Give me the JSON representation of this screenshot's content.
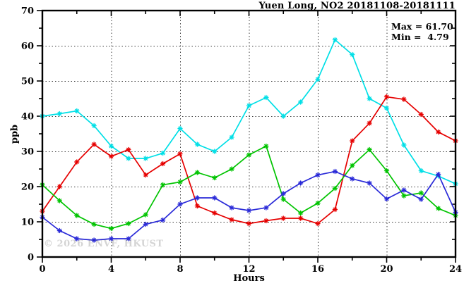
{
  "header": {
    "title": "Yuen Long, NO2 20181108-20181111"
  },
  "stats_box": {
    "max_label": "Max = 61.70",
    "min_label": "Min =  4.79"
  },
  "watermark": {
    "text": "© 2026 ENVF, HKUST"
  },
  "chart_data": {
    "type": "line",
    "title": "Yuen Long, NO2 20181108-20181111",
    "xlabel": "Hours",
    "ylabel": "ppb",
    "xlim": [
      0,
      24
    ],
    "ylim": [
      0,
      70
    ],
    "xticks_major": [
      0,
      4,
      8,
      12,
      16,
      20,
      24
    ],
    "xticks_minor": [
      2,
      6,
      10,
      14,
      18,
      22
    ],
    "yticks_major": [
      0,
      10,
      20,
      30,
      40,
      50,
      60,
      70
    ],
    "yticks_minor": [
      5,
      15,
      25,
      35,
      45,
      55,
      65
    ],
    "grid": {
      "vertical_at": [
        4,
        8,
        12,
        16,
        20
      ],
      "horizontal_at": [
        10,
        20,
        30,
        40,
        50,
        60
      ],
      "style": "dotted"
    },
    "legend": "none",
    "marker": "asterisk",
    "frame_color": "#000000",
    "x": [
      0,
      1,
      2,
      3,
      4,
      5,
      6,
      7,
      8,
      9,
      10,
      11,
      12,
      13,
      14,
      15,
      16,
      17,
      18,
      19,
      20,
      21,
      22,
      23,
      24
    ],
    "series": [
      {
        "name": "cyan-series",
        "color": "#00dfe6",
        "values": [
          40,
          40.7,
          41.5,
          37.3,
          31.5,
          28,
          28,
          29.5,
          36.5,
          32,
          30,
          34,
          43,
          45.3,
          40,
          44,
          50.5,
          61.7,
          57.5,
          45,
          42.3,
          31.8,
          24.5,
          23,
          20.8
        ]
      },
      {
        "name": "red-series",
        "color": "#e60000",
        "values": [
          13,
          20,
          27,
          32,
          28.6,
          30.5,
          23.3,
          26.5,
          29.3,
          14.5,
          12.5,
          10.6,
          9.5,
          10.3,
          11,
          11,
          9.5,
          13.5,
          33,
          38,
          45.5,
          44.8,
          40.5,
          35.5,
          33
        ]
      },
      {
        "name": "green-series",
        "color": "#00c400",
        "values": [
          20.5,
          16,
          11.8,
          9.3,
          8.1,
          9.5,
          12,
          20.5,
          21.3,
          24,
          22.5,
          25,
          29,
          31.5,
          16.4,
          12.5,
          15.3,
          19.5,
          26,
          30.5,
          24.5,
          17.4,
          18.2,
          13.8,
          11.8
        ]
      },
      {
        "name": "blue-series",
        "color": "#2a2ad8",
        "values": [
          11.3,
          7.5,
          5.2,
          4.79,
          5.2,
          5.2,
          9.3,
          10.5,
          15,
          16.8,
          16.8,
          14,
          13.2,
          14,
          18,
          21,
          23.3,
          24.3,
          22.2,
          21,
          16.5,
          19,
          16.4,
          23.5,
          12.7
        ]
      }
    ],
    "stats": {
      "max": 61.7,
      "min": 4.79
    }
  }
}
